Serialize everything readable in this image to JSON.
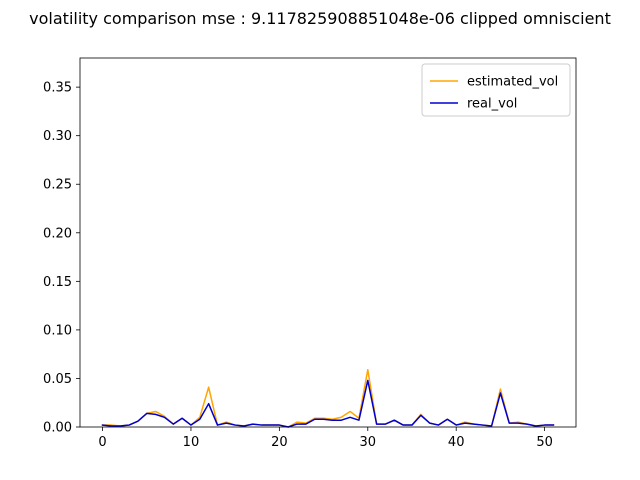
{
  "chart_data": {
    "type": "line",
    "title": "volatility comparison mse : 9.117825908851048e-06 clipped omniscient",
    "xlabel": "",
    "ylabel": "",
    "xlim": [
      -2.55,
      53.55
    ],
    "ylim": [
      0,
      0.38
    ],
    "x_ticks": [
      0,
      10,
      20,
      30,
      40,
      50
    ],
    "y_ticks": [
      0.0,
      0.05,
      0.1,
      0.15,
      0.2,
      0.25,
      0.3,
      0.35
    ],
    "x_tick_labels": [
      "0",
      "10",
      "20",
      "30",
      "40",
      "50"
    ],
    "y_tick_labels": [
      "0.00",
      "0.05",
      "0.10",
      "0.15",
      "0.20",
      "0.25",
      "0.30",
      "0.35"
    ],
    "grid": false,
    "legend_position": "top-right",
    "x": [
      0,
      1,
      2,
      3,
      4,
      5,
      6,
      7,
      8,
      9,
      10,
      11,
      12,
      13,
      14,
      15,
      16,
      17,
      18,
      19,
      20,
      21,
      22,
      23,
      24,
      25,
      26,
      27,
      28,
      29,
      30,
      31,
      32,
      33,
      34,
      35,
      36,
      37,
      38,
      39,
      40,
      41,
      42,
      43,
      44,
      45,
      46,
      47,
      48,
      49,
      50,
      51
    ],
    "series": [
      {
        "name": "estimated_vol",
        "color": "#FFA500",
        "values": [
          0.002,
          0.002,
          0.001,
          0.002,
          0.006,
          0.014,
          0.016,
          0.011,
          0.003,
          0.009,
          0.002,
          0.01,
          0.041,
          0.002,
          0.005,
          0.002,
          0.001,
          0.003,
          0.002,
          0.002,
          0.002,
          0.0,
          0.005,
          0.004,
          0.009,
          0.009,
          0.008,
          0.01,
          0.016,
          0.009,
          0.059,
          0.003,
          0.003,
          0.007,
          0.002,
          0.002,
          0.013,
          0.004,
          0.002,
          0.008,
          0.002,
          0.005,
          0.003,
          0.002,
          0.001,
          0.039,
          0.004,
          0.005,
          0.003,
          0.001,
          0.002,
          0.002
        ]
      },
      {
        "name": "real_vol",
        "color": "#0000CD",
        "values": [
          0.002,
          0.001,
          0.001,
          0.002,
          0.006,
          0.014,
          0.013,
          0.01,
          0.003,
          0.009,
          0.002,
          0.008,
          0.024,
          0.002,
          0.004,
          0.002,
          0.001,
          0.003,
          0.002,
          0.002,
          0.002,
          0.0,
          0.003,
          0.003,
          0.008,
          0.008,
          0.007,
          0.007,
          0.01,
          0.007,
          0.048,
          0.003,
          0.003,
          0.007,
          0.002,
          0.002,
          0.012,
          0.004,
          0.002,
          0.008,
          0.002,
          0.004,
          0.003,
          0.002,
          0.001,
          0.035,
          0.004,
          0.004,
          0.003,
          0.001,
          0.002,
          0.002
        ]
      }
    ]
  }
}
